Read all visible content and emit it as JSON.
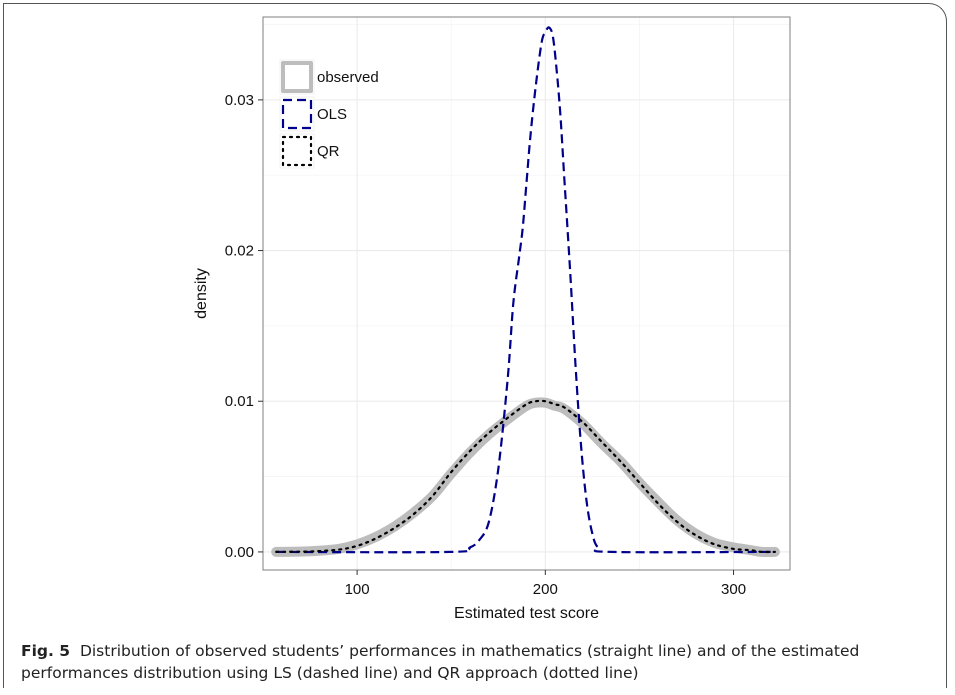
{
  "caption": {
    "label": "Fig. 5",
    "text": "Distribution of observed students’ performances in mathematics (straight line) and of the estimated performances distribution using LS (dashed line) and QR approach (dotted line)"
  },
  "colors": {
    "observed": "#bdbdbd",
    "ols": "#00008b",
    "qr": "#000000",
    "grid": "#ebebeb",
    "panel_border": "#7f7f7f"
  },
  "chart_data": {
    "type": "line",
    "title": "",
    "xlabel": "Estimated test score",
    "ylabel": "density",
    "xlim": [
      50,
      330
    ],
    "ylim": [
      -0.0012,
      0.0355
    ],
    "x_ticks": [
      100,
      200,
      300
    ],
    "x_tick_labels": [
      "100",
      "200",
      "300"
    ],
    "y_ticks": [
      0.0,
      0.01,
      0.02,
      0.03
    ],
    "y_tick_labels": [
      "0.00",
      "0.01",
      "0.02",
      "0.03"
    ],
    "grid": true,
    "legend_position": "top-left",
    "legend": [
      "observed",
      "OLS",
      "QR"
    ],
    "series": [
      {
        "name": "observed",
        "style": "solid",
        "x": [
          57,
          75,
          90,
          100,
          110,
          120,
          130,
          140,
          150,
          160,
          170,
          180,
          190,
          195,
          200,
          205,
          210,
          220,
          230,
          240,
          250,
          260,
          270,
          280,
          290,
          300,
          305,
          310,
          315,
          322
        ],
        "y": [
          0.0,
          5e-05,
          0.0002,
          0.0005,
          0.001,
          0.0017,
          0.0026,
          0.0037,
          0.0052,
          0.0066,
          0.0078,
          0.0088,
          0.0097,
          0.0099,
          0.0099,
          0.0097,
          0.0095,
          0.0085,
          0.0072,
          0.006,
          0.0046,
          0.0033,
          0.0021,
          0.0012,
          0.0006,
          0.0003,
          0.0002,
          0.0001,
          0.0,
          0.0
        ]
      },
      {
        "name": "OLS",
        "style": "dashed",
        "x": [
          57,
          150,
          160,
          165,
          170,
          175,
          180,
          183,
          186,
          188,
          190,
          192,
          195,
          198,
          200,
          202,
          204,
          206,
          208,
          210,
          213,
          216,
          219,
          222,
          225,
          228,
          235,
          320
        ],
        "y": [
          0.0,
          0.0,
          0.0003,
          0.0008,
          0.002,
          0.0055,
          0.0115,
          0.0165,
          0.0195,
          0.0215,
          0.0245,
          0.0275,
          0.031,
          0.0338,
          0.0345,
          0.0348,
          0.0342,
          0.032,
          0.029,
          0.025,
          0.019,
          0.0125,
          0.007,
          0.0033,
          0.0012,
          0.0003,
          0.0,
          0.0
        ]
      },
      {
        "name": "QR",
        "style": "dotted",
        "x": [
          57,
          75,
          90,
          100,
          110,
          120,
          130,
          140,
          150,
          160,
          170,
          180,
          190,
          195,
          200,
          205,
          210,
          220,
          230,
          240,
          250,
          260,
          270,
          280,
          290,
          300,
          305,
          310,
          315,
          322
        ],
        "y": [
          0.0,
          3e-05,
          0.00015,
          0.0004,
          0.0009,
          0.0016,
          0.0025,
          0.0037,
          0.0053,
          0.0067,
          0.0079,
          0.0089,
          0.0098,
          0.01,
          0.01,
          0.0098,
          0.0096,
          0.0086,
          0.0073,
          0.006,
          0.0046,
          0.0032,
          0.002,
          0.0011,
          0.0005,
          0.0002,
          0.00015,
          0.0001,
          0.0,
          0.0
        ]
      }
    ]
  }
}
